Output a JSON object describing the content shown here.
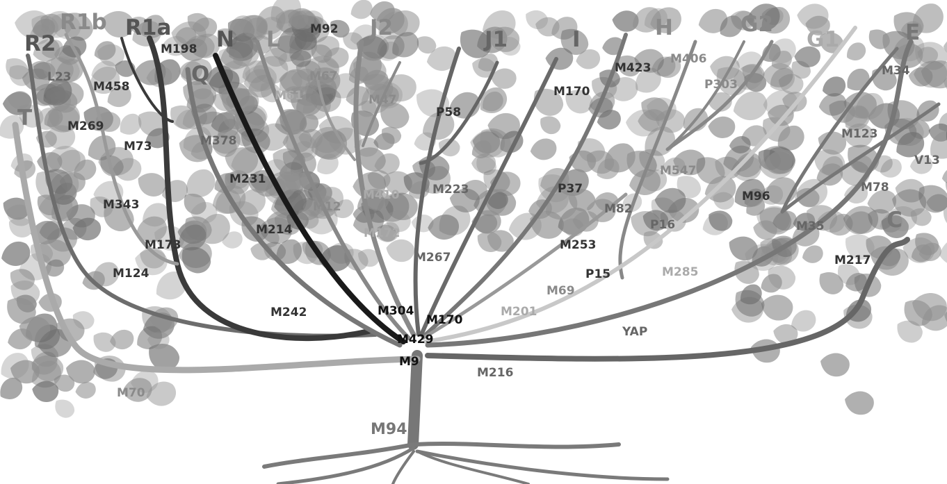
{
  "colors": {
    "leaf": "#8f8f8f",
    "leafDark": "#6e6e6e",
    "branch": "#6d6d6d",
    "darkBranch": "#3a3a3a",
    "lightBranch": "#c8c8c8",
    "black": "#1a1a1a"
  },
  "haplogroups": {
    "T": "T",
    "R2": "R2",
    "R1b": "R1b",
    "R1a": "R1a",
    "N": "N",
    "Q": "Q",
    "L": "L",
    "J2": "J2",
    "J1": "J1",
    "I": "I",
    "H": "H",
    "G2": "G2",
    "G1": "G1",
    "E": "E",
    "C": "C"
  },
  "markers": {
    "M198": "M198",
    "L23": "L23",
    "M458": "M458",
    "M269": "M269",
    "M73": "M73",
    "M343": "M343",
    "M173": "M173",
    "M124": "M124",
    "M70": "M70",
    "M378": "M378",
    "M231": "M231",
    "M214": "M214",
    "M242": "M242",
    "M92": "M92",
    "M67": "M67",
    "M61": "M61",
    "M47": "M47",
    "M12": "M12",
    "M410": "M410",
    "M172": "M172",
    "P58": "P58",
    "M223": "M223",
    "M267": "M267",
    "M170a": "M170",
    "M170b": "M170",
    "M304": "M304",
    "M429": "M429",
    "M9": "M9",
    "M423": "M423",
    "M406": "M406",
    "P303": "P303",
    "M547": "M547",
    "P37": "P37",
    "M82": "M82",
    "P16": "P16",
    "M253": "M253",
    "P15": "P15",
    "M69": "M69",
    "M285": "M285",
    "M201": "M201",
    "YAP": "YAP",
    "M216": "M216",
    "M94": "M94",
    "M34": "M34",
    "M123": "M123",
    "V13": "V13",
    "M78": "M78",
    "M96": "M96",
    "M35": "M35",
    "M217": "M217"
  }
}
